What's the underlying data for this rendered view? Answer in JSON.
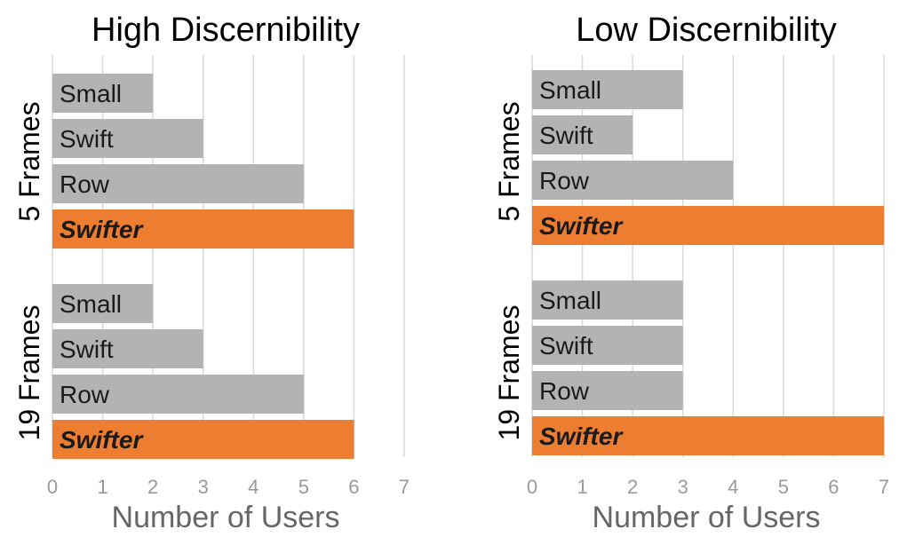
{
  "chart_data": [
    {
      "type": "bar",
      "orientation": "horizontal",
      "title": "High Discernibility",
      "xlabel": "Number of Users",
      "ylabel": "",
      "xlim": [
        0,
        7
      ],
      "xticks": [
        "0",
        "1",
        "2",
        "3",
        "4",
        "5",
        "6",
        "7"
      ],
      "grid": true,
      "groups": [
        {
          "label": "5 Frames",
          "bars": [
            {
              "label": "Small",
              "value": 2,
              "highlight": false
            },
            {
              "label": "Swift",
              "value": 3,
              "highlight": false
            },
            {
              "label": "Row",
              "value": 5,
              "highlight": false
            },
            {
              "label": "Swifter",
              "value": 6,
              "highlight": true
            }
          ]
        },
        {
          "label": "19 Frames",
          "bars": [
            {
              "label": "Small",
              "value": 2,
              "highlight": false
            },
            {
              "label": "Swift",
              "value": 3,
              "highlight": false
            },
            {
              "label": "Row",
              "value": 5,
              "highlight": false
            },
            {
              "label": "Swifter",
              "value": 6,
              "highlight": true
            }
          ]
        }
      ]
    },
    {
      "type": "bar",
      "orientation": "horizontal",
      "title": "Low Discernibility",
      "xlabel": "Number of Users",
      "ylabel": "",
      "xlim": [
        0,
        7
      ],
      "xticks": [
        "0",
        "1",
        "2",
        "3",
        "4",
        "5",
        "6",
        "7"
      ],
      "grid": true,
      "groups": [
        {
          "label": "5 Frames",
          "bars": [
            {
              "label": "Small",
              "value": 3,
              "highlight": false
            },
            {
              "label": "Swift",
              "value": 2,
              "highlight": false
            },
            {
              "label": "Row",
              "value": 4,
              "highlight": false
            },
            {
              "label": "Swifter",
              "value": 7,
              "highlight": true
            }
          ]
        },
        {
          "label": "19 Frames",
          "bars": [
            {
              "label": "Small",
              "value": 3,
              "highlight": false
            },
            {
              "label": "Swift",
              "value": 3,
              "highlight": false
            },
            {
              "label": "Row",
              "value": 3,
              "highlight": false
            },
            {
              "label": "Swifter",
              "value": 7,
              "highlight": true
            }
          ]
        }
      ]
    }
  ],
  "colors": {
    "bar_default": "#b3b3b3",
    "bar_highlight": "#ed7d31",
    "grid": "#d9d9d9",
    "tick_text": "#9a9a9a",
    "axis_label": "#666666",
    "title": "#000000",
    "bar_text": "#1a1a1a"
  }
}
